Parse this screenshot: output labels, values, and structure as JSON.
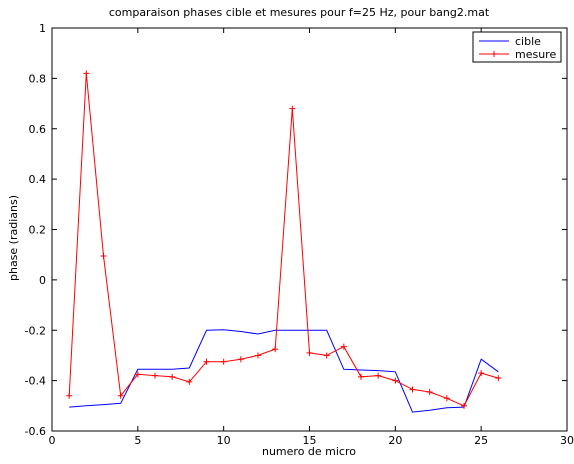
{
  "chart_data": {
    "type": "line",
    "title": "comparaison phases cible et mesures pour f=25 Hz, pour bang2.mat",
    "xlabel": "numero de micro",
    "ylabel": "phase (radians)",
    "xlim": [
      0,
      30
    ],
    "ylim": [
      -0.6,
      1
    ],
    "xticks": [
      0,
      5,
      10,
      15,
      20,
      25,
      30
    ],
    "yticks": [
      -0.6,
      -0.4,
      -0.2,
      0,
      0.2,
      0.4,
      0.6,
      0.8,
      1
    ],
    "xtick_labels": [
      "0",
      "5",
      "10",
      "15",
      "20",
      "25",
      "30"
    ],
    "ytick_labels": [
      "-0.6",
      "-0.4",
      "-0.2",
      "0",
      "0.2",
      "0.4",
      "0.6",
      "0.8",
      "1"
    ],
    "grid": false,
    "legend_position": "top-right",
    "series": [
      {
        "name": "cible",
        "color": "#0000ff",
        "marker": "none",
        "x": [
          1,
          2,
          3,
          4,
          5,
          6,
          7,
          8,
          9,
          10,
          11,
          12,
          13,
          14,
          15,
          16,
          17,
          18,
          19,
          20,
          21,
          22,
          23,
          24,
          25,
          26
        ],
        "y": [
          -0.505,
          -0.5,
          -0.495,
          -0.49,
          -0.355,
          -0.355,
          -0.355,
          -0.35,
          -0.2,
          -0.198,
          -0.205,
          -0.215,
          -0.2,
          -0.2,
          -0.2,
          -0.2,
          -0.355,
          -0.358,
          -0.36,
          -0.365,
          -0.525,
          -0.518,
          -0.508,
          -0.505,
          -0.315,
          -0.365
        ]
      },
      {
        "name": "mesure",
        "color": "#ff0000",
        "marker": "+",
        "x": [
          1,
          2,
          3,
          4,
          5,
          6,
          7,
          8,
          9,
          10,
          11,
          12,
          13,
          14,
          15,
          16,
          17,
          18,
          19,
          20,
          21,
          22,
          23,
          24,
          25,
          26
        ],
        "y": [
          -0.46,
          0.82,
          0.095,
          -0.46,
          -0.375,
          -0.38,
          -0.385,
          -0.405,
          -0.325,
          -0.325,
          -0.315,
          -0.3,
          -0.275,
          0.68,
          -0.29,
          -0.3,
          -0.265,
          -0.385,
          -0.38,
          -0.4,
          -0.435,
          -0.445,
          -0.47,
          -0.5,
          -0.37,
          -0.39
        ]
      }
    ]
  }
}
